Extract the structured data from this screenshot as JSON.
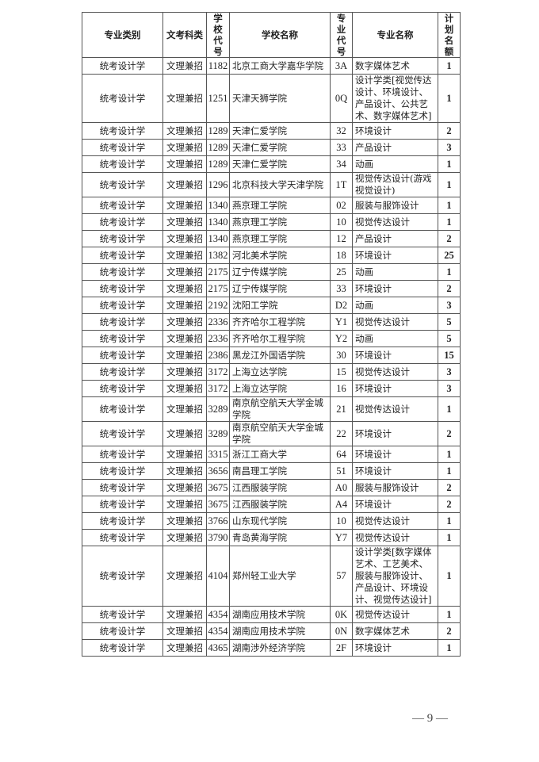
{
  "table": {
    "headers": [
      "专业类别",
      "文考科类",
      "学校代号",
      "学校名称",
      "专业代号",
      "专业名称",
      "计划名额"
    ],
    "rows": [
      [
        "统考设计学",
        "文理兼招",
        "1182",
        "北京工商大学嘉华学院",
        "3A",
        "数字媒体艺术",
        "1"
      ],
      [
        "统考设计学",
        "文理兼招",
        "1251",
        "天津天狮学院",
        "0Q",
        "设计学类[视觉传达设计、环境设计、产品设计、公共艺术、数字媒体艺术]",
        "1"
      ],
      [
        "统考设计学",
        "文理兼招",
        "1289",
        "天津仁爱学院",
        "32",
        "环境设计",
        "2"
      ],
      [
        "统考设计学",
        "文理兼招",
        "1289",
        "天津仁爱学院",
        "33",
        "产品设计",
        "3"
      ],
      [
        "统考设计学",
        "文理兼招",
        "1289",
        "天津仁爱学院",
        "34",
        "动画",
        "1"
      ],
      [
        "统考设计学",
        "文理兼招",
        "1296",
        "北京科技大学天津学院",
        "1T",
        "视觉传达设计(游戏视觉设计)",
        "1"
      ],
      [
        "统考设计学",
        "文理兼招",
        "1340",
        "燕京理工学院",
        "02",
        "服装与服饰设计",
        "1"
      ],
      [
        "统考设计学",
        "文理兼招",
        "1340",
        "燕京理工学院",
        "10",
        "视觉传达设计",
        "1"
      ],
      [
        "统考设计学",
        "文理兼招",
        "1340",
        "燕京理工学院",
        "12",
        "产品设计",
        "2"
      ],
      [
        "统考设计学",
        "文理兼招",
        "1382",
        "河北美术学院",
        "18",
        "环境设计",
        "25"
      ],
      [
        "统考设计学",
        "文理兼招",
        "2175",
        "辽宁传媒学院",
        "25",
        "动画",
        "1"
      ],
      [
        "统考设计学",
        "文理兼招",
        "2175",
        "辽宁传媒学院",
        "33",
        "环境设计",
        "2"
      ],
      [
        "统考设计学",
        "文理兼招",
        "2192",
        "沈阳工学院",
        "D2",
        "动画",
        "3"
      ],
      [
        "统考设计学",
        "文理兼招",
        "2336",
        "齐齐哈尔工程学院",
        "Y1",
        "视觉传达设计",
        "5"
      ],
      [
        "统考设计学",
        "文理兼招",
        "2336",
        "齐齐哈尔工程学院",
        "Y2",
        "动画",
        "5"
      ],
      [
        "统考设计学",
        "文理兼招",
        "2386",
        "黑龙江外国语学院",
        "30",
        "环境设计",
        "15"
      ],
      [
        "统考设计学",
        "文理兼招",
        "3172",
        "上海立达学院",
        "15",
        "视觉传达设计",
        "3"
      ],
      [
        "统考设计学",
        "文理兼招",
        "3172",
        "上海立达学院",
        "16",
        "环境设计",
        "3"
      ],
      [
        "统考设计学",
        "文理兼招",
        "3289",
        "南京航空航天大学金城学院",
        "21",
        "视觉传达设计",
        "1"
      ],
      [
        "统考设计学",
        "文理兼招",
        "3289",
        "南京航空航天大学金城学院",
        "22",
        "环境设计",
        "2"
      ],
      [
        "统考设计学",
        "文理兼招",
        "3315",
        "浙江工商大学",
        "64",
        "环境设计",
        "1"
      ],
      [
        "统考设计学",
        "文理兼招",
        "3656",
        "南昌理工学院",
        "51",
        "环境设计",
        "1"
      ],
      [
        "统考设计学",
        "文理兼招",
        "3675",
        "江西服装学院",
        "A0",
        "服装与服饰设计",
        "2"
      ],
      [
        "统考设计学",
        "文理兼招",
        "3675",
        "江西服装学院",
        "A4",
        "环境设计",
        "2"
      ],
      [
        "统考设计学",
        "文理兼招",
        "3766",
        "山东现代学院",
        "10",
        "视觉传达设计",
        "1"
      ],
      [
        "统考设计学",
        "文理兼招",
        "3790",
        "青岛黄海学院",
        "Y7",
        "视觉传达设计",
        "1"
      ],
      [
        "统考设计学",
        "文理兼招",
        "4104",
        "郑州轻工业大学",
        "57",
        "设计学类[数字媒体艺术、工艺美术、服装与服饰设计、产品设计、环境设计、视觉传达设计]",
        "1"
      ],
      [
        "统考设计学",
        "文理兼招",
        "4354",
        "湖南应用技术学院",
        "0K",
        "视觉传达设计",
        "1"
      ],
      [
        "统考设计学",
        "文理兼招",
        "4354",
        "湖南应用技术学院",
        "0N",
        "数字媒体艺术",
        "2"
      ],
      [
        "统考设计学",
        "文理兼招",
        "4365",
        "湖南涉外经济学院",
        "2F",
        "环境设计",
        "1"
      ]
    ]
  },
  "page_number": "— 9 —"
}
